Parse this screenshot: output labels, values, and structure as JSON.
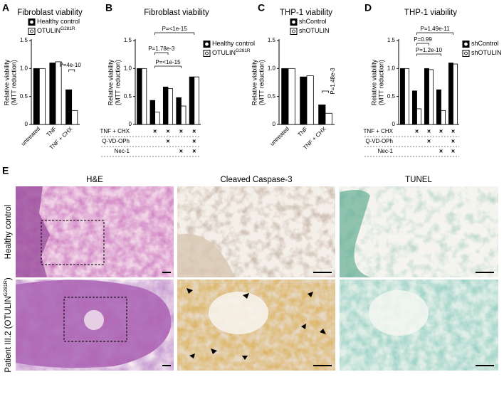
{
  "chart_data": [
    {
      "panel": "A",
      "type": "bar",
      "title": "Fibroblast viability",
      "ylabel": [
        "Relative viability",
        "(MTT reduction)"
      ],
      "categories": [
        "untreated",
        "TNF",
        "TNF + CHX"
      ],
      "series": [
        {
          "name": "Healthy control",
          "color": "#000000",
          "values": [
            1,
            1.1,
            0.62
          ]
        },
        {
          "name": "OTULIN",
          "name_sup": "G281R",
          "color": "#ffffff",
          "values": [
            1,
            1.12,
            0.25
          ]
        }
      ],
      "ylim": [
        0,
        1.5
      ],
      "yticks": [
        0,
        0.5,
        {
          "value": 1,
          "label": "1.0"
        },
        1.5
      ],
      "annotations": [
        "P=4e-10"
      ]
    },
    {
      "panel": "B",
      "type": "bar",
      "title": "Fibroblast viability",
      "ylabel": [
        "Relative viability",
        "(MTT reduction)"
      ],
      "categories": [
        null,
        null,
        null,
        null,
        null
      ],
      "series": [
        {
          "name": "Healthy control",
          "color": "#000000",
          "values": [
            1,
            0.43,
            0.67,
            0.48,
            0.85
          ]
        },
        {
          "name": "OTULIN",
          "name_sup": "G281R",
          "color": "#ffffff",
          "values": [
            1,
            0.22,
            0.64,
            0.33,
            0.85
          ]
        }
      ],
      "ylim": [
        0,
        1.5
      ],
      "yticks": [
        0,
        0.5,
        {
          "value": 1,
          "label": "1.0"
        },
        1.5
      ],
      "mark_symbol": "×",
      "conditions": [
        {
          "name": "TNF + CHX",
          "applied": [
            false,
            true,
            true,
            true,
            true
          ]
        },
        {
          "name": "Q-VD-OPh",
          "applied": [
            false,
            false,
            true,
            false,
            true
          ]
        },
        {
          "name": "Nec-1",
          "applied": [
            false,
            false,
            false,
            true,
            true
          ]
        }
      ],
      "annotations": [
        "P=<1e-15",
        "P=1.78e-3",
        "P=<1e-15"
      ]
    },
    {
      "panel": "C",
      "type": "bar",
      "title": "THP-1 viability",
      "ylabel": [
        "Relative viability",
        "(MTT reduction)"
      ],
      "categories": [
        "untreated",
        "TNF",
        "TNF + CHX"
      ],
      "series": [
        {
          "name": "shControl",
          "color": "#000000",
          "values": [
            1,
            0.85,
            0.35
          ]
        },
        {
          "name": "shOTULIN",
          "color": "#ffffff",
          "values": [
            1,
            0.87,
            0.2
          ]
        }
      ],
      "ylim": [
        0,
        1.5
      ],
      "yticks": [
        0,
        0.5,
        {
          "value": 1,
          "label": "1.0"
        },
        1.5
      ],
      "annotations": [
        "P=1.48e-3"
      ]
    },
    {
      "panel": "D",
      "type": "bar",
      "title": "THP-1 viability",
      "ylabel": [
        "Relative viability",
        "(MTT reduction)"
      ],
      "categories": [
        null,
        null,
        null,
        null,
        null
      ],
      "series": [
        {
          "name": "shControl",
          "color": "#000000",
          "values": [
            1,
            0.6,
            1,
            0.62,
            1.1
          ]
        },
        {
          "name": "shOTULIN",
          "color": "#ffffff",
          "values": [
            1,
            0.28,
            0.98,
            0.25,
            1.08
          ]
        }
      ],
      "ylim": [
        0,
        1.5
      ],
      "yticks": [
        0,
        0.5,
        {
          "value": 1,
          "label": "1.0"
        },
        1.5
      ],
      "mark_symbol": "×",
      "conditions": [
        {
          "name": "TNF + CHX",
          "applied": [
            false,
            true,
            true,
            true,
            true
          ]
        },
        {
          "name": "Q-VD-OPh",
          "applied": [
            false,
            false,
            true,
            false,
            true
          ]
        },
        {
          "name": "Nec-1",
          "applied": [
            false,
            false,
            false,
            true,
            true
          ]
        }
      ],
      "annotations": [
        "P=1.49e-11",
        "P=0.99",
        "P=1.2e-10"
      ]
    }
  ],
  "panel_e": {
    "panel": "E",
    "columns": [
      "H&E",
      "Cleaved Caspase-3",
      "TUNEL"
    ],
    "rows": [
      [
        "Healthy control"
      ],
      [
        "Patient III.2 (OTULIN",
        "G281R",
        ")"
      ]
    ]
  }
}
